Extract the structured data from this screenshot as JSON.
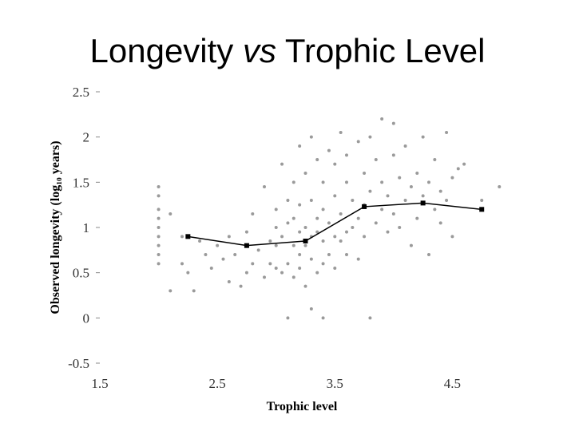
{
  "title": {
    "part1": "Longevity ",
    "part2": "vs",
    "part3": " Trophic Level"
  },
  "chart_data": {
    "type": "scatter",
    "title": "Longevity vs Trophic Level",
    "xlabel": "Trophic level",
    "ylabel": "Observed longevity (log₁₀ years)",
    "xlim": [
      1.5,
      5.0
    ],
    "ylim": [
      -0.5,
      2.5
    ],
    "x_ticks": [
      "1.5",
      "2.5",
      "3.5",
      "4.5"
    ],
    "y_ticks": [
      "-0.5",
      "0",
      "0.5",
      "1",
      "1.5",
      "2",
      "2.5"
    ],
    "grid": false,
    "colors": {
      "points": "#9a9a9a",
      "trend": "#000000"
    },
    "series": [
      {
        "kind": "points",
        "points": [
          [
            2.0,
            1.45
          ],
          [
            2.0,
            1.35
          ],
          [
            2.0,
            1.2
          ],
          [
            2.0,
            1.1
          ],
          [
            2.0,
            1.0
          ],
          [
            2.0,
            0.9
          ],
          [
            2.0,
            0.8
          ],
          [
            2.0,
            0.7
          ],
          [
            2.0,
            0.6
          ],
          [
            2.1,
            0.3
          ],
          [
            2.1,
            1.15
          ],
          [
            2.2,
            0.9
          ],
          [
            2.2,
            0.6
          ],
          [
            2.25,
            0.5
          ],
          [
            2.3,
            0.3
          ],
          [
            2.35,
            0.85
          ],
          [
            2.4,
            0.7
          ],
          [
            2.45,
            0.55
          ],
          [
            2.5,
            0.8
          ],
          [
            2.55,
            0.65
          ],
          [
            2.6,
            0.9
          ],
          [
            2.6,
            0.4
          ],
          [
            2.65,
            0.7
          ],
          [
            2.7,
            0.35
          ],
          [
            2.75,
            0.5
          ],
          [
            2.75,
            0.95
          ],
          [
            2.8,
            0.6
          ],
          [
            2.8,
            1.15
          ],
          [
            2.85,
            0.75
          ],
          [
            2.9,
            1.45
          ],
          [
            2.9,
            0.45
          ],
          [
            2.95,
            0.85
          ],
          [
            2.95,
            0.6
          ],
          [
            3.0,
            1.2
          ],
          [
            3.0,
            0.8
          ],
          [
            3.0,
            0.55
          ],
          [
            3.0,
            1.0
          ],
          [
            3.05,
            1.7
          ],
          [
            3.05,
            0.5
          ],
          [
            3.05,
            0.9
          ],
          [
            3.1,
            1.3
          ],
          [
            3.1,
            0.6
          ],
          [
            3.1,
            1.05
          ],
          [
            3.1,
            0.0
          ],
          [
            3.15,
            0.8
          ],
          [
            3.15,
            1.5
          ],
          [
            3.15,
            0.45
          ],
          [
            3.15,
            1.1
          ],
          [
            3.2,
            1.9
          ],
          [
            3.2,
            0.7
          ],
          [
            3.2,
            1.25
          ],
          [
            3.2,
            0.55
          ],
          [
            3.2,
            0.95
          ],
          [
            3.25,
            1.6
          ],
          [
            3.25,
            0.35
          ],
          [
            3.25,
            1.0
          ],
          [
            3.25,
            0.8
          ],
          [
            3.3,
            2.0
          ],
          [
            3.3,
            1.3
          ],
          [
            3.3,
            0.65
          ],
          [
            3.3,
            0.1
          ],
          [
            3.3,
            0.9
          ],
          [
            3.35,
            1.75
          ],
          [
            3.35,
            1.1
          ],
          [
            3.35,
            0.5
          ],
          [
            3.35,
            0.95
          ],
          [
            3.4,
            1.5
          ],
          [
            3.4,
            0.85
          ],
          [
            3.4,
            1.2
          ],
          [
            3.4,
            0.6
          ],
          [
            3.4,
            0.0
          ],
          [
            3.45,
            1.85
          ],
          [
            3.45,
            1.05
          ],
          [
            3.45,
            0.7
          ],
          [
            3.5,
            1.35
          ],
          [
            3.5,
            0.9
          ],
          [
            3.5,
            1.7
          ],
          [
            3.5,
            0.55
          ],
          [
            3.55,
            2.05
          ],
          [
            3.55,
            1.15
          ],
          [
            3.55,
            0.85
          ],
          [
            3.6,
            1.5
          ],
          [
            3.6,
            0.95
          ],
          [
            3.6,
            1.8
          ],
          [
            3.6,
            0.7
          ],
          [
            3.65,
            1.3
          ],
          [
            3.65,
            1.0
          ],
          [
            3.7,
            1.95
          ],
          [
            3.7,
            1.1
          ],
          [
            3.7,
            0.65
          ],
          [
            3.75,
            1.6
          ],
          [
            3.75,
            1.25
          ],
          [
            3.75,
            0.9
          ],
          [
            3.8,
            2.0
          ],
          [
            3.8,
            1.4
          ],
          [
            3.8,
            0.0
          ],
          [
            3.85,
            1.75
          ],
          [
            3.85,
            1.05
          ],
          [
            3.9,
            1.5
          ],
          [
            3.9,
            1.2
          ],
          [
            3.9,
            2.2
          ],
          [
            3.95,
            1.35
          ],
          [
            3.95,
            0.95
          ],
          [
            4.0,
            1.8
          ],
          [
            4.0,
            1.15
          ],
          [
            4.0,
            2.15
          ],
          [
            4.05,
            1.55
          ],
          [
            4.05,
            1.0
          ],
          [
            4.1,
            1.3
          ],
          [
            4.1,
            1.9
          ],
          [
            4.15,
            1.45
          ],
          [
            4.15,
            0.8
          ],
          [
            4.2,
            1.6
          ],
          [
            4.2,
            1.1
          ],
          [
            4.25,
            1.35
          ],
          [
            4.25,
            2.0
          ],
          [
            4.3,
            1.5
          ],
          [
            4.3,
            0.7
          ],
          [
            4.35,
            1.2
          ],
          [
            4.35,
            1.75
          ],
          [
            4.4,
            1.05
          ],
          [
            4.4,
            1.4
          ],
          [
            4.45,
            2.05
          ],
          [
            4.45,
            1.3
          ],
          [
            4.5,
            0.9
          ],
          [
            4.5,
            1.55
          ],
          [
            4.55,
            1.65
          ],
          [
            4.6,
            1.7
          ],
          [
            4.75,
            1.3
          ],
          [
            4.9,
            1.45
          ]
        ]
      },
      {
        "kind": "trend",
        "points": [
          [
            2.25,
            0.9
          ],
          [
            2.75,
            0.8
          ],
          [
            3.25,
            0.85
          ],
          [
            3.75,
            1.23
          ],
          [
            4.25,
            1.27
          ],
          [
            4.75,
            1.2
          ]
        ]
      }
    ]
  }
}
